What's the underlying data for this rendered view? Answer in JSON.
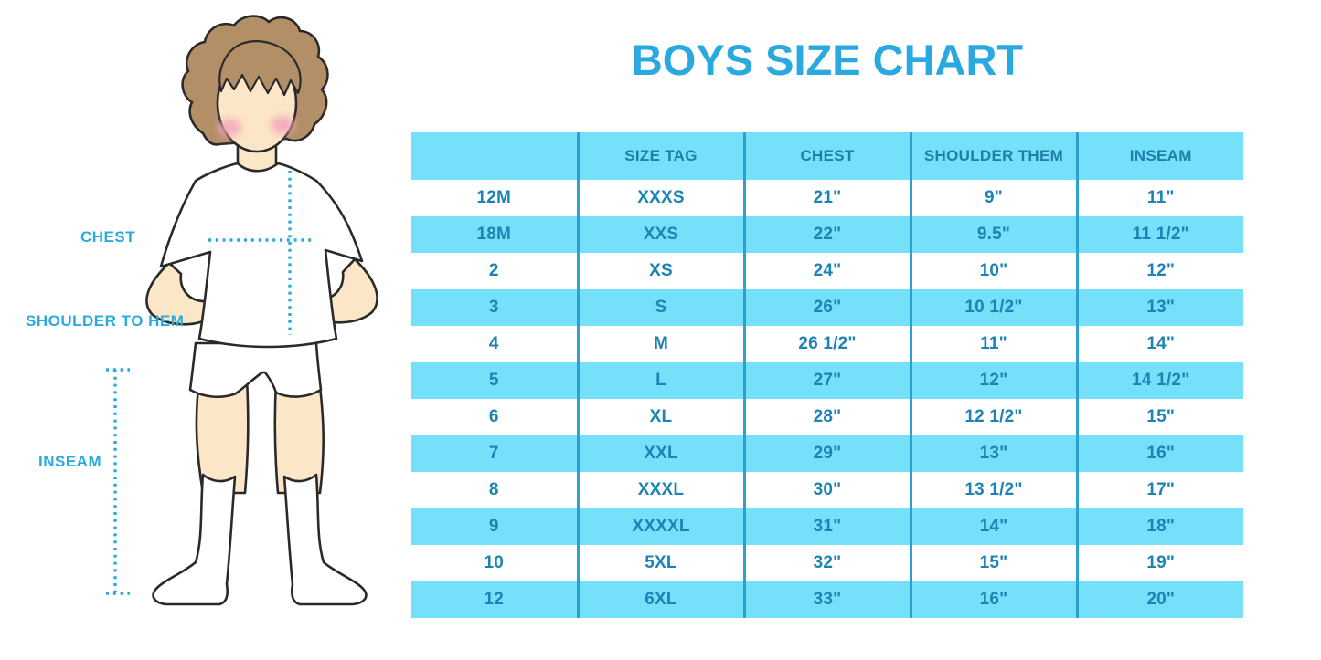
{
  "title": "BOYS SIZE CHART",
  "diagram": {
    "chest_label": "CHEST",
    "shoulder_label": "SHOULDER TO HEM",
    "inseam_label": "INSEAM"
  },
  "chart_data": {
    "type": "table",
    "title": "BOYS SIZE CHART",
    "columns": [
      "",
      "SIZE TAG",
      "CHEST",
      "SHOULDER THEM",
      "INSEAM"
    ],
    "rows": [
      [
        "12M",
        "XXXS",
        "21\"",
        "9\"",
        "11\""
      ],
      [
        "18M",
        "XXS",
        "22\"",
        "9.5\"",
        "11 1/2\""
      ],
      [
        "2",
        "XS",
        "24\"",
        "10\"",
        "12\""
      ],
      [
        "3",
        "S",
        "26\"",
        "10 1/2\"",
        "13\""
      ],
      [
        "4",
        "M",
        "26 1/2\"",
        "11\"",
        "14\""
      ],
      [
        "5",
        "L",
        "27\"",
        "12\"",
        "14 1/2\""
      ],
      [
        "6",
        "XL",
        "28\"",
        "12 1/2\"",
        "15\""
      ],
      [
        "7",
        "XXL",
        "29\"",
        "13\"",
        "16\""
      ],
      [
        "8",
        "XXXL",
        "30\"",
        "13 1/2\"",
        "17\""
      ],
      [
        "9",
        "XXXXL",
        "31\"",
        "14\"",
        "18\""
      ],
      [
        "10",
        "5XL",
        "32\"",
        "15\"",
        "19\""
      ],
      [
        "12",
        "6XL",
        "33\"",
        "16\"",
        "20\""
      ]
    ],
    "stripe_style": "alternating rows, header and even data rows tinted",
    "legend_position": "none",
    "grid": "vertical column rules only"
  },
  "colors": {
    "title_blue": "#29A9E0",
    "label_blue": "#29ABE2",
    "row_stripe": "#74E0FA",
    "column_rule": "#2EA0CE",
    "header_text": "#1F7FA9",
    "cell_text": "#1B84B4",
    "hair": "#B28F66",
    "skin": "#FBE7C7",
    "cheek": "#F2A3BA",
    "outline": "#2A2A2A"
  }
}
